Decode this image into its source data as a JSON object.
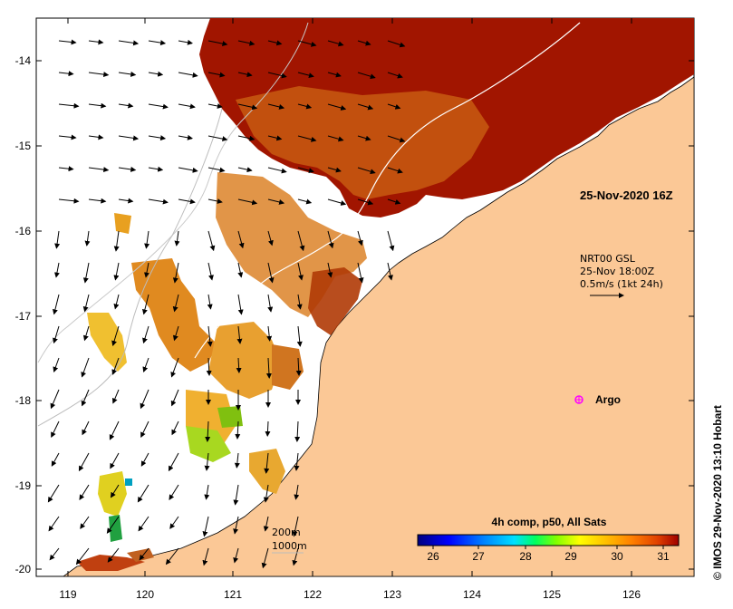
{
  "map": {
    "lat_labels": [
      "-14",
      "-15",
      "-16",
      "-17",
      "-18",
      "-19",
      "-20"
    ],
    "lon_labels": [
      "119",
      "120",
      "121",
      "122",
      "123",
      "124",
      "125",
      "126"
    ]
  },
  "annotations": {
    "timestamp_label": "25-Nov-2020 16Z",
    "current_info_line1": "NRT00 GSL",
    "current_info_line2": "25-Nov 18:00Z",
    "current_info_line3": "0.5m/s (1kt 24h)",
    "argo_label": "Argo",
    "isobath_200": "200m",
    "isobath_1000": "1000m",
    "credit": "© IMOS 29-Nov-2020 13:10 Hobart"
  },
  "colorbar": {
    "title": "4h comp, p50, All Sats",
    "tick_labels": [
      "26",
      "27",
      "28",
      "29",
      "30",
      "31"
    ],
    "colors": [
      "#00007f",
      "#0000ff",
      "#007fff",
      "#00e0ff",
      "#00ff60",
      "#80ff00",
      "#ffff00",
      "#ffc000",
      "#ff8000",
      "#e04000",
      "#a00000"
    ]
  },
  "colors": {
    "land": "#fbc896",
    "sst_warm": "#a11500",
    "sst_orange": "#d06010",
    "argo_marker": "#ff00ff"
  }
}
